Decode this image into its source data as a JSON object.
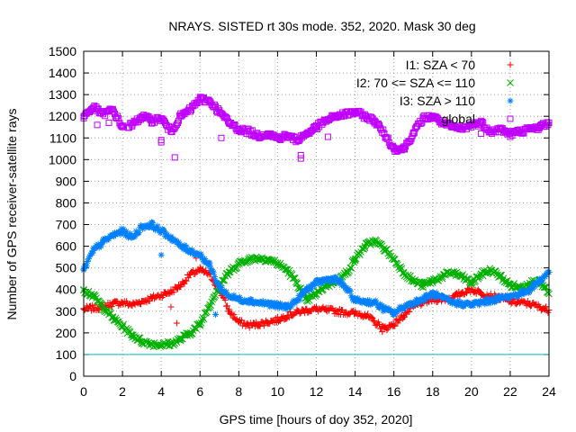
{
  "chart_data": {
    "type": "scatter",
    "title": "NRAYS. SISTED rt 30s mode. 352, 2020. Mask 30 deg",
    "xlabel": "GPS time [hours of doy 352, 2020]",
    "ylabel": "Number of GPS receiver-satellite rays",
    "xlim": [
      0,
      24
    ],
    "ylim": [
      0,
      1500
    ],
    "xticks": [
      "0",
      "2",
      "4",
      "6",
      "8",
      "10",
      "12",
      "14",
      "16",
      "18",
      "20",
      "22",
      "24"
    ],
    "yticks": [
      "0",
      "100",
      "200",
      "300",
      "400",
      "500",
      "600",
      "700",
      "800",
      "900",
      "1000",
      "1100",
      "1200",
      "1300",
      "1400",
      "1500"
    ],
    "grid": true,
    "legend_position": "top-right",
    "reference_line": {
      "y": 100,
      "color": "#00c0c0"
    },
    "series": [
      {
        "name": "I1: SZA < 70",
        "marker": "+",
        "color": "#ff0000",
        "x": [
          0,
          0.5,
          1,
          1.5,
          2,
          2.5,
          3,
          3.5,
          4,
          4.5,
          5,
          5.5,
          6,
          6.5,
          7,
          7.5,
          8,
          8.5,
          9,
          9.5,
          10,
          10.5,
          11,
          11.5,
          12,
          12.5,
          13,
          13.5,
          14,
          14.5,
          15,
          15.5,
          16,
          16.5,
          17,
          17.5,
          18,
          18.5,
          19,
          19.5,
          20,
          20.5,
          21,
          21.5,
          22,
          22.5,
          23,
          23.5,
          24
        ],
        "y": [
          310,
          315,
          320,
          335,
          340,
          330,
          345,
          360,
          375,
          390,
          420,
          470,
          490,
          470,
          400,
          300,
          250,
          235,
          240,
          250,
          260,
          280,
          295,
          305,
          310,
          305,
          300,
          295,
          290,
          285,
          250,
          220,
          240,
          280,
          320,
          340,
          355,
          355,
          360,
          385,
          400,
          385,
          370,
          360,
          345,
          340,
          335,
          320,
          305
        ],
        "outliers": [
          [
            4.8,
            245
          ],
          [
            15.4,
            205
          ],
          [
            5.8,
            545
          ],
          [
            4.5,
            320
          ]
        ]
      },
      {
        "name": "I2: 70 <= SZA <= 110",
        "marker": "x",
        "color": "#00b000",
        "x": [
          0,
          0.5,
          1,
          1.5,
          2,
          2.5,
          3,
          3.5,
          4,
          4.5,
          5,
          5.5,
          6,
          6.5,
          7,
          7.5,
          8,
          8.5,
          9,
          9.5,
          10,
          10.5,
          11,
          11.5,
          12,
          12.5,
          13,
          13.5,
          14,
          14.5,
          15,
          15.5,
          16,
          16.5,
          17,
          17.5,
          18,
          18.5,
          19,
          19.5,
          20,
          20.5,
          21,
          21.5,
          22,
          22.5,
          23,
          23.5,
          24
        ],
        "y": [
          400,
          370,
          320,
          270,
          230,
          190,
          160,
          150,
          145,
          150,
          170,
          200,
          240,
          330,
          420,
          480,
          520,
          540,
          545,
          540,
          520,
          490,
          430,
          350,
          380,
          420,
          440,
          470,
          540,
          600,
          625,
          590,
          540,
          480,
          440,
          420,
          440,
          460,
          480,
          460,
          430,
          470,
          490,
          460,
          420,
          410,
          430,
          440,
          380
        ],
        "outliers": []
      },
      {
        "name": "I3: SZA > 110",
        "marker": "*",
        "color": "#0080ff",
        "x": [
          0,
          0.5,
          1,
          1.5,
          2,
          2.5,
          3,
          3.5,
          4,
          4.5,
          5,
          5.5,
          6,
          6.5,
          7,
          7.5,
          8,
          8.5,
          9,
          9.5,
          10,
          10.5,
          11,
          11.5,
          12,
          12.5,
          13,
          13.5,
          14,
          14.5,
          15,
          15.5,
          16,
          16.5,
          17,
          17.5,
          18,
          18.5,
          19,
          19.5,
          20,
          20.5,
          21,
          21.5,
          22,
          22.5,
          23,
          23.5,
          24
        ],
        "y": [
          490,
          580,
          620,
          650,
          670,
          640,
          690,
          700,
          670,
          640,
          600,
          580,
          560,
          510,
          410,
          370,
          355,
          350,
          340,
          335,
          325,
          320,
          350,
          400,
          430,
          445,
          450,
          410,
          350,
          345,
          340,
          310,
          290,
          320,
          340,
          355,
          380,
          360,
          340,
          335,
          330,
          340,
          350,
          360,
          370,
          380,
          400,
          440,
          480
        ],
        "outliers": [
          [
            4.0,
            560
          ],
          [
            6.8,
            285
          ]
        ]
      },
      {
        "name": "global",
        "marker": "square",
        "color": "#c000ff",
        "x": [
          0,
          0.5,
          1,
          1.5,
          2,
          2.5,
          3,
          3.5,
          4,
          4.5,
          5,
          5.5,
          6,
          6.5,
          7,
          7.5,
          8,
          8.5,
          9,
          9.5,
          10,
          10.5,
          11,
          11.5,
          12,
          12.5,
          13,
          13.5,
          14,
          14.5,
          15,
          15.5,
          16,
          16.5,
          17,
          17.5,
          18,
          18.5,
          19,
          19.5,
          20,
          20.5,
          21,
          21.5,
          22,
          22.5,
          23,
          23.5,
          24
        ],
        "y": [
          1200,
          1240,
          1210,
          1230,
          1150,
          1160,
          1200,
          1180,
          1190,
          1130,
          1200,
          1230,
          1280,
          1270,
          1220,
          1170,
          1140,
          1130,
          1110,
          1120,
          1100,
          1110,
          1090,
          1120,
          1150,
          1180,
          1200,
          1210,
          1220,
          1200,
          1180,
          1120,
          1050,
          1050,
          1120,
          1190,
          1200,
          1170,
          1150,
          1140,
          1160,
          1170,
          1130,
          1140,
          1120,
          1130,
          1140,
          1150,
          1170
        ],
        "gaps": [
          [
            2.1,
            2.3
          ]
        ],
        "outliers": [
          [
            0.7,
            1160
          ],
          [
            1.3,
            1170
          ],
          [
            4.0,
            1090
          ],
          [
            4.0,
            1080
          ],
          [
            4.7,
            1010
          ],
          [
            7.1,
            1100
          ],
          [
            11.2,
            1020
          ],
          [
            11.2,
            1005
          ],
          [
            12.6,
            1105
          ],
          [
            20.5,
            1120
          ],
          [
            22.0,
            1105
          ],
          [
            16.2,
            1040
          ]
        ]
      }
    ]
  }
}
